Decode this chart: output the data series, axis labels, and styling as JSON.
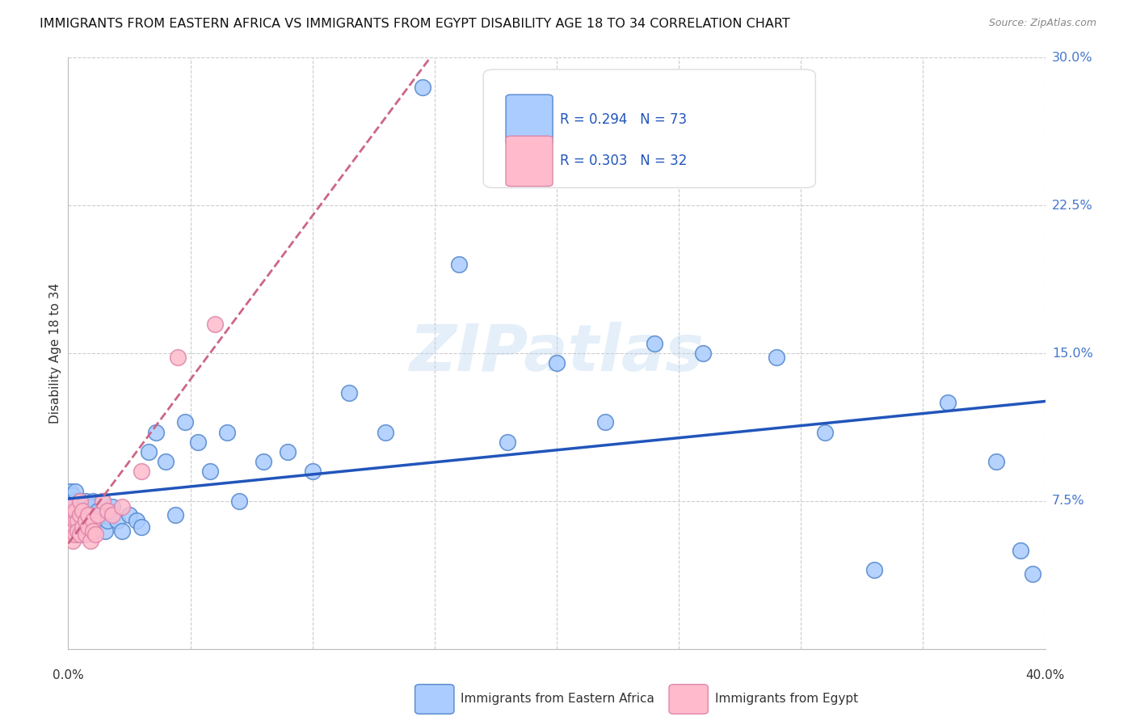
{
  "title": "IMMIGRANTS FROM EASTERN AFRICA VS IMMIGRANTS FROM EGYPT DISABILITY AGE 18 TO 34 CORRELATION CHART",
  "source": "Source: ZipAtlas.com",
  "ylabel": "Disability Age 18 to 34",
  "xlim": [
    0.0,
    0.4
  ],
  "ylim": [
    0.0,
    0.3
  ],
  "xticks": [
    0.0,
    0.05,
    0.1,
    0.15,
    0.2,
    0.25,
    0.3,
    0.35,
    0.4
  ],
  "yticks": [
    0.0,
    0.075,
    0.15,
    0.225,
    0.3
  ],
  "blue_face": "#AACCFF",
  "blue_edge": "#5588CC",
  "pink_face": "#FFBBCC",
  "pink_edge": "#DD88AA",
  "blue_line": "#2255BB",
  "pink_line": "#CC6688",
  "grid_color": "#CCCCCC",
  "right_label_color": "#4477CC",
  "text_color": "#333333",
  "source_color": "#888888",
  "legend_text_color": "#2255BB",
  "watermark": "ZIPatlas",
  "watermark_color": "#AACCEE",
  "legend_R1": "R = 0.294",
  "legend_N1": "N = 73",
  "legend_R2": "R = 0.303",
  "legend_N2": "N = 32",
  "ea_x": [
    0.001,
    0.001,
    0.001,
    0.001,
    0.001,
    0.002,
    0.002,
    0.002,
    0.002,
    0.002,
    0.003,
    0.003,
    0.003,
    0.003,
    0.004,
    0.004,
    0.004,
    0.005,
    0.005,
    0.005,
    0.006,
    0.006,
    0.006,
    0.007,
    0.007,
    0.008,
    0.008,
    0.009,
    0.009,
    0.01,
    0.01,
    0.01,
    0.011,
    0.012,
    0.013,
    0.014,
    0.015,
    0.016,
    0.017,
    0.018,
    0.02,
    0.022,
    0.025,
    0.028,
    0.03,
    0.033,
    0.036,
    0.04,
    0.044,
    0.048,
    0.053,
    0.058,
    0.065,
    0.07,
    0.08,
    0.09,
    0.1,
    0.115,
    0.13,
    0.145,
    0.16,
    0.18,
    0.2,
    0.22,
    0.24,
    0.26,
    0.29,
    0.31,
    0.33,
    0.36,
    0.38,
    0.39,
    0.395
  ],
  "ea_y": [
    0.075,
    0.07,
    0.065,
    0.08,
    0.068,
    0.072,
    0.06,
    0.078,
    0.065,
    0.07,
    0.068,
    0.075,
    0.062,
    0.08,
    0.07,
    0.065,
    0.058,
    0.068,
    0.075,
    0.06,
    0.065,
    0.072,
    0.058,
    0.068,
    0.075,
    0.065,
    0.07,
    0.06,
    0.072,
    0.068,
    0.075,
    0.06,
    0.065,
    0.07,
    0.068,
    0.075,
    0.06,
    0.065,
    0.07,
    0.072,
    0.065,
    0.06,
    0.068,
    0.065,
    0.062,
    0.1,
    0.11,
    0.095,
    0.068,
    0.115,
    0.105,
    0.09,
    0.11,
    0.075,
    0.095,
    0.1,
    0.09,
    0.13,
    0.11,
    0.285,
    0.195,
    0.105,
    0.145,
    0.115,
    0.155,
    0.15,
    0.148,
    0.11,
    0.04,
    0.125,
    0.095,
    0.05,
    0.038
  ],
  "eg_x": [
    0.001,
    0.001,
    0.001,
    0.002,
    0.002,
    0.002,
    0.003,
    0.003,
    0.003,
    0.004,
    0.004,
    0.005,
    0.005,
    0.005,
    0.006,
    0.006,
    0.007,
    0.007,
    0.008,
    0.008,
    0.009,
    0.01,
    0.01,
    0.011,
    0.012,
    0.014,
    0.016,
    0.018,
    0.022,
    0.03,
    0.045,
    0.06
  ],
  "eg_y": [
    0.065,
    0.058,
    0.072,
    0.06,
    0.068,
    0.055,
    0.065,
    0.07,
    0.058,
    0.065,
    0.06,
    0.068,
    0.075,
    0.058,
    0.062,
    0.07,
    0.065,
    0.058,
    0.068,
    0.062,
    0.055,
    0.065,
    0.06,
    0.058,
    0.068,
    0.075,
    0.07,
    0.068,
    0.072,
    0.09,
    0.148,
    0.165
  ]
}
